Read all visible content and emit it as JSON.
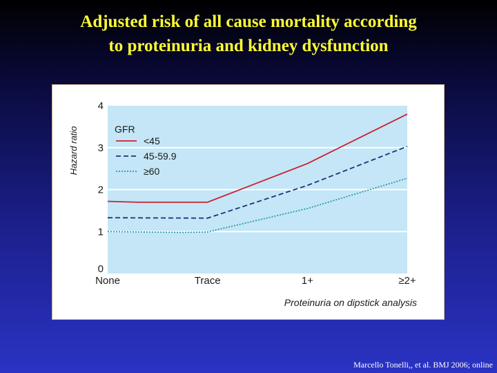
{
  "slide": {
    "title_line1": "Adjusted risk of all cause mortality according",
    "title_line2": "to proteinuria and kidney dysfunction",
    "citation": "Marcello Tonelli,, et al. BMJ  2006; online"
  },
  "colors": {
    "plot_bg": "#c4e6f6",
    "series": [
      "#cc1f2e",
      "#1f2f7a",
      "#2a9aa6"
    ]
  },
  "chart_data": {
    "type": "line",
    "title": "",
    "xlabel": "Proteinuria on dipstick analysis",
    "ylabel": "Hazard ratio",
    "categories": [
      "None",
      "Trace",
      "1+",
      "≥2+"
    ],
    "ylim": [
      0,
      4
    ],
    "yticks": [
      "0",
      "1",
      "2",
      "3",
      "4"
    ],
    "grid": true,
    "legend_title": "GFR",
    "legend_position": "top-left",
    "series": [
      {
        "name": "<45",
        "style": "solid",
        "points": [
          [
            0,
            1.72
          ],
          [
            0.3,
            1.7
          ],
          [
            1,
            1.7
          ],
          [
            2,
            2.62
          ],
          [
            3,
            3.8
          ]
        ]
      },
      {
        "name": "45-59.9",
        "style": "dashed",
        "points": [
          [
            0,
            1.33
          ],
          [
            1,
            1.32
          ],
          [
            2,
            2.1
          ],
          [
            3,
            3.03
          ]
        ]
      },
      {
        "name": "≥60",
        "style": "dotted",
        "points": [
          [
            0,
            1.0
          ],
          [
            0.75,
            0.98
          ],
          [
            1,
            0.99
          ],
          [
            2,
            1.55
          ],
          [
            3,
            2.27
          ]
        ]
      }
    ]
  }
}
